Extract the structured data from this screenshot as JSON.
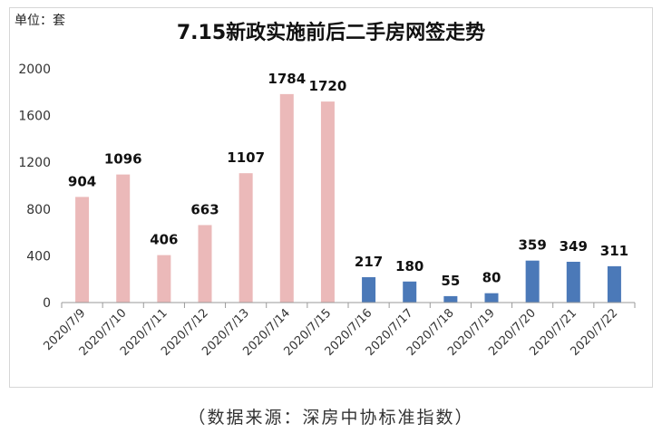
{
  "unit_label": "单位：套",
  "source": "（数据来源：深房中协标准指数）",
  "colors": {
    "before": "#ebb9b9",
    "after": "#4b79b8",
    "axis": "#9a9a9a"
  },
  "chart_data": {
    "type": "bar",
    "title": "7.15新政实施前后二手房网签走势",
    "xlabel": "",
    "ylabel": "",
    "ylim": [
      0,
      2000
    ],
    "yticks": [
      0,
      400,
      800,
      1200,
      1600,
      2000
    ],
    "grid": false,
    "categories": [
      "2020/7/9",
      "2020/7/10",
      "2020/7/11",
      "2020/7/12",
      "2020/7/13",
      "2020/7/14",
      "2020/7/15",
      "2020/7/16",
      "2020/7/17",
      "2020/7/18",
      "2020/7/19",
      "2020/7/20",
      "2020/7/21",
      "2020/7/22"
    ],
    "values": [
      904,
      1096,
      406,
      663,
      1107,
      1784,
      1720,
      217,
      180,
      55,
      80,
      359,
      349,
      311
    ],
    "groups": [
      "before",
      "before",
      "before",
      "before",
      "before",
      "before",
      "before",
      "after",
      "after",
      "after",
      "after",
      "after",
      "after",
      "after"
    ]
  }
}
